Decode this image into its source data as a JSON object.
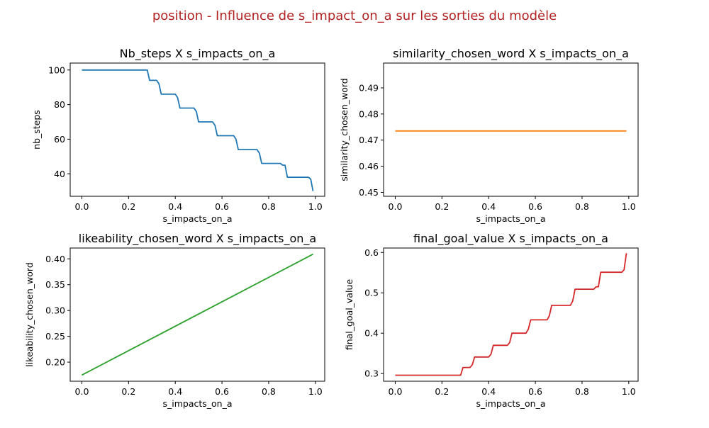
{
  "figure": {
    "suptitle": "position - Influence de s_impact_on_a sur les sorties du modèle",
    "suptitle_color": "#b22222"
  },
  "chart_data": [
    {
      "type": "line",
      "title": "Nb_steps X s_impacts_on_a",
      "xlabel": "s_impacts_on_a",
      "ylabel": "nb_steps",
      "xlim": [
        -0.05,
        1.04
      ],
      "ylim": [
        27,
        104
      ],
      "xticks": [
        0.0,
        0.2,
        0.4,
        0.6,
        0.8,
        1.0
      ],
      "xtick_labels": [
        "0.0",
        "0.2",
        "0.4",
        "0.6",
        "0.8",
        "1.0"
      ],
      "yticks": [
        40,
        60,
        80,
        100
      ],
      "ytick_labels": [
        "40",
        "60",
        "80",
        "100"
      ],
      "grid": false,
      "series": [
        {
          "color": "#1f77b4",
          "x": [
            0.0,
            0.28,
            0.29,
            0.32,
            0.33,
            0.34,
            0.4,
            0.41,
            0.42,
            0.48,
            0.49,
            0.5,
            0.56,
            0.57,
            0.58,
            0.65,
            0.66,
            0.67,
            0.75,
            0.76,
            0.77,
            0.85,
            0.86,
            0.87,
            0.88,
            0.97,
            0.98,
            0.99
          ],
          "y": [
            100,
            100,
            94,
            94,
            92,
            86,
            86,
            84,
            78,
            78,
            76,
            70,
            70,
            68,
            62,
            62,
            60,
            54,
            54,
            52,
            46,
            46,
            45,
            45,
            38,
            38,
            37,
            30
          ]
        }
      ]
    },
    {
      "type": "line",
      "title": "similarity_chosen_word X s_impacts_on_a",
      "xlabel": "s_impacts_on_a",
      "ylabel": "similarity_chosen_word",
      "xlim": [
        -0.05,
        1.04
      ],
      "ylim": [
        0.4485,
        0.4995
      ],
      "xticks": [
        0.0,
        0.2,
        0.4,
        0.6,
        0.8,
        1.0
      ],
      "xtick_labels": [
        "0.0",
        "0.2",
        "0.4",
        "0.6",
        "0.8",
        "1.0"
      ],
      "yticks": [
        0.45,
        0.46,
        0.47,
        0.48,
        0.49
      ],
      "ytick_labels": [
        "0.45",
        "0.46",
        "0.47",
        "0.48",
        "0.49"
      ],
      "grid": false,
      "series": [
        {
          "color": "#ff7f0e",
          "x": [
            0.0,
            0.99
          ],
          "y": [
            0.4735,
            0.4735
          ]
        }
      ]
    },
    {
      "type": "line",
      "title": "likeability_chosen_word X s_impacts_on_a",
      "xlabel": "s_impacts_on_a",
      "ylabel": "likeability_chosen_word",
      "xlim": [
        -0.05,
        1.04
      ],
      "ylim": [
        0.163,
        0.421
      ],
      "xticks": [
        0.0,
        0.2,
        0.4,
        0.6,
        0.8,
        1.0
      ],
      "xtick_labels": [
        "0.0",
        "0.2",
        "0.4",
        "0.6",
        "0.8",
        "1.0"
      ],
      "yticks": [
        0.2,
        0.25,
        0.3,
        0.35,
        0.4
      ],
      "ytick_labels": [
        "0.20",
        "0.25",
        "0.30",
        "0.35",
        "0.40"
      ],
      "grid": false,
      "series": [
        {
          "color": "#2ca02c",
          "x": [
            0.0,
            0.99
          ],
          "y": [
            0.175,
            0.409
          ]
        }
      ]
    },
    {
      "type": "line",
      "title": "final_goal_value X s_impacts_on_a",
      "xlabel": "s_impacts_on_a",
      "ylabel": "final_goal_value",
      "xlim": [
        -0.05,
        1.04
      ],
      "ylim": [
        0.281,
        0.611
      ],
      "xticks": [
        0.0,
        0.2,
        0.4,
        0.6,
        0.8,
        1.0
      ],
      "xtick_labels": [
        "0.0",
        "0.2",
        "0.4",
        "0.6",
        "0.8",
        "1.0"
      ],
      "yticks": [
        0.3,
        0.4,
        0.5,
        0.6
      ],
      "ytick_labels": [
        "0.3",
        "0.4",
        "0.5",
        "0.6"
      ],
      "grid": false,
      "series": [
        {
          "color": "#d62728",
          "x": [
            0.0,
            0.28,
            0.29,
            0.32,
            0.33,
            0.34,
            0.4,
            0.41,
            0.42,
            0.48,
            0.49,
            0.5,
            0.56,
            0.57,
            0.58,
            0.65,
            0.66,
            0.67,
            0.75,
            0.76,
            0.77,
            0.85,
            0.86,
            0.87,
            0.88,
            0.97,
            0.98,
            0.99
          ],
          "y": [
            0.296,
            0.296,
            0.315,
            0.315,
            0.322,
            0.341,
            0.341,
            0.348,
            0.37,
            0.37,
            0.377,
            0.4,
            0.4,
            0.41,
            0.433,
            0.433,
            0.443,
            0.469,
            0.469,
            0.48,
            0.509,
            0.509,
            0.515,
            0.515,
            0.551,
            0.551,
            0.557,
            0.598
          ]
        }
      ]
    }
  ]
}
